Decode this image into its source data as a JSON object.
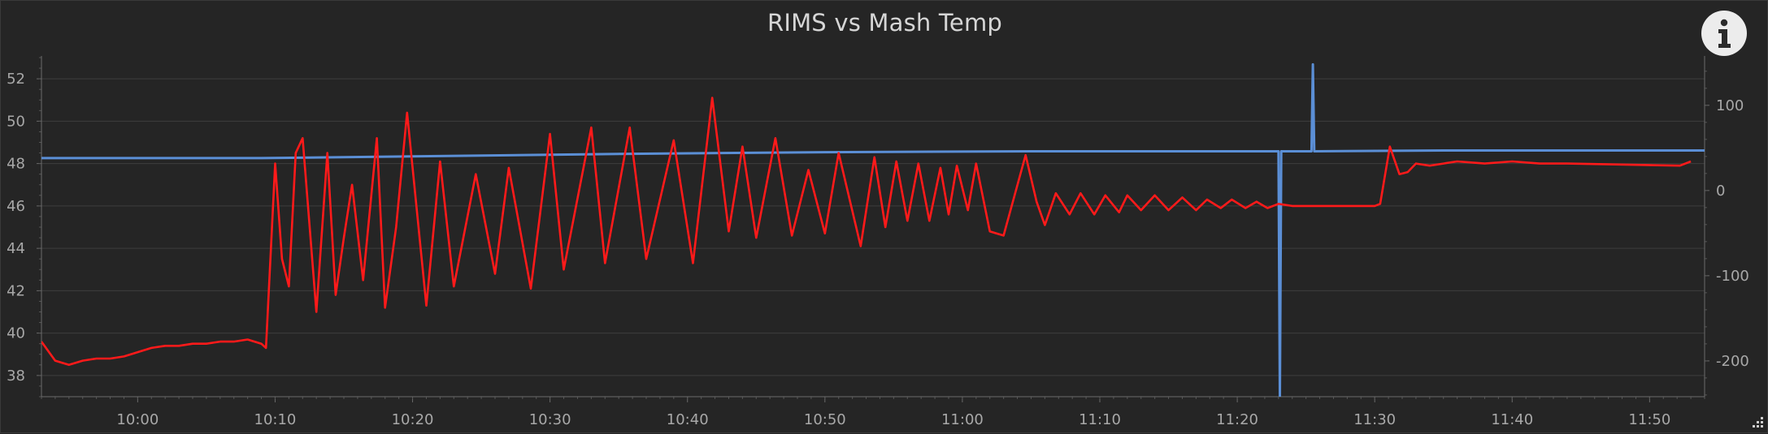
{
  "chart_data": {
    "type": "line",
    "title": "RIMS vs Mash Temp",
    "xlabel": "",
    "ylabel": "",
    "x_range": [
      "09:53",
      "11:54"
    ],
    "ylim_left": [
      37,
      53
    ],
    "ylim_right": [
      -242,
      156
    ],
    "grid": true,
    "legend": "none",
    "x_ticks": [
      "10:00",
      "10:10",
      "10:20",
      "10:30",
      "10:40",
      "10:50",
      "11:00",
      "11:10",
      "11:20",
      "11:30",
      "11:40",
      "11:50"
    ],
    "y_ticks_left": [
      38,
      40,
      42,
      44,
      46,
      48,
      50,
      52
    ],
    "y_ticks_right": [
      -200,
      -100,
      0,
      100
    ],
    "series": [
      {
        "axis": "left",
        "color": "#ff1a1a",
        "points": [
          [
            "09:53",
            39.6
          ],
          [
            "09:54",
            38.7
          ],
          [
            "09:55",
            38.5
          ],
          [
            "09:56",
            38.7
          ],
          [
            "09:57",
            38.8
          ],
          [
            "09:58",
            38.8
          ],
          [
            "09:59",
            38.9
          ],
          [
            "10:00",
            39.1
          ],
          [
            "10:01",
            39.3
          ],
          [
            "10:02",
            39.4
          ],
          [
            "10:03",
            39.4
          ],
          [
            "10:04",
            39.5
          ],
          [
            "10:05",
            39.5
          ],
          [
            "10:06",
            39.6
          ],
          [
            "10:07",
            39.6
          ],
          [
            "10:08",
            39.7
          ],
          [
            "10:09",
            39.5
          ],
          [
            "10:09:20",
            39.3
          ],
          [
            "10:10",
            48.0
          ],
          [
            "10:10:30",
            43.5
          ],
          [
            "10:11",
            42.2
          ],
          [
            "10:11:30",
            48.5
          ],
          [
            "10:12",
            49.2
          ],
          [
            "10:13",
            41.0
          ],
          [
            "10:13:48",
            48.5
          ],
          [
            "10:14:24",
            41.8
          ],
          [
            "10:15",
            44.5
          ],
          [
            "10:15:36",
            47.0
          ],
          [
            "10:16:24",
            42.5
          ],
          [
            "10:17:24",
            49.2
          ],
          [
            "10:18",
            41.2
          ],
          [
            "10:18:48",
            45.0
          ],
          [
            "10:19:36",
            50.4
          ],
          [
            "10:21",
            41.3
          ],
          [
            "10:22",
            48.1
          ],
          [
            "10:23",
            42.2
          ],
          [
            "10:24:36",
            47.5
          ],
          [
            "10:26",
            42.8
          ],
          [
            "10:27",
            47.8
          ],
          [
            "10:28:36",
            42.1
          ],
          [
            "10:30",
            49.4
          ],
          [
            "10:31",
            43.0
          ],
          [
            "10:33",
            49.7
          ],
          [
            "10:34",
            43.3
          ],
          [
            "10:35:48",
            49.7
          ],
          [
            "10:37",
            43.5
          ],
          [
            "10:39",
            49.1
          ],
          [
            "10:40:24",
            43.3
          ],
          [
            "10:41:48",
            51.1
          ],
          [
            "10:43",
            44.8
          ],
          [
            "10:44",
            48.8
          ],
          [
            "10:45",
            44.5
          ],
          [
            "10:46:24",
            49.2
          ],
          [
            "10:47:36",
            44.6
          ],
          [
            "10:48:48",
            47.7
          ],
          [
            "10:50",
            44.7
          ],
          [
            "10:51",
            48.5
          ],
          [
            "10:52:36",
            44.1
          ],
          [
            "10:53:36",
            48.3
          ],
          [
            "10:54:24",
            45.0
          ],
          [
            "10:55:12",
            48.1
          ],
          [
            "10:56",
            45.3
          ],
          [
            "10:56:48",
            48.0
          ],
          [
            "10:57:36",
            45.3
          ],
          [
            "10:58:24",
            47.8
          ],
          [
            "10:59",
            45.6
          ],
          [
            "10:59:36",
            47.9
          ],
          [
            "11:00:24",
            45.8
          ],
          [
            "11:01",
            48.0
          ],
          [
            "11:02",
            44.8
          ],
          [
            "11:03",
            44.6
          ],
          [
            "11:04:36",
            48.4
          ],
          [
            "11:05:24",
            46.2
          ],
          [
            "11:06",
            45.1
          ],
          [
            "11:06:48",
            46.6
          ],
          [
            "11:07:48",
            45.6
          ],
          [
            "11:08:36",
            46.6
          ],
          [
            "11:09:36",
            45.6
          ],
          [
            "11:10:24",
            46.5
          ],
          [
            "11:11:24",
            45.7
          ],
          [
            "11:12",
            46.5
          ],
          [
            "11:13",
            45.8
          ],
          [
            "11:14",
            46.5
          ],
          [
            "11:15",
            45.8
          ],
          [
            "11:16",
            46.4
          ],
          [
            "11:17",
            45.8
          ],
          [
            "11:17:48",
            46.3
          ],
          [
            "11:18:48",
            45.9
          ],
          [
            "11:19:36",
            46.3
          ],
          [
            "11:20:36",
            45.9
          ],
          [
            "11:21:24",
            46.2
          ],
          [
            "11:22:12",
            45.9
          ],
          [
            "11:23",
            46.1
          ],
          [
            "11:24",
            46.0
          ],
          [
            "11:26",
            46.0
          ],
          [
            "11:28",
            46.0
          ],
          [
            "11:30",
            46.0
          ],
          [
            "11:30:24",
            46.1
          ],
          [
            "11:31:06",
            48.8
          ],
          [
            "11:31:48",
            47.5
          ],
          [
            "11:32:24",
            47.6
          ],
          [
            "11:33",
            48.0
          ],
          [
            "11:34",
            47.9
          ],
          [
            "11:35",
            48.0
          ],
          [
            "11:36",
            48.1
          ],
          [
            "11:38",
            48.0
          ],
          [
            "11:40",
            48.1
          ],
          [
            "11:42",
            48.0
          ],
          [
            "11:44",
            48.0
          ],
          [
            "11:52:12",
            47.9
          ],
          [
            "11:53",
            48.1
          ]
        ]
      },
      {
        "axis": "right",
        "color": "#5b8fd6",
        "points": [
          [
            "09:53",
            38
          ],
          [
            "10:00",
            38
          ],
          [
            "10:09",
            38
          ],
          [
            "10:20",
            40
          ],
          [
            "10:35",
            43
          ],
          [
            "10:50",
            45
          ],
          [
            "11:05",
            46
          ],
          [
            "11:23",
            46
          ],
          [
            "11:23:06",
            -242
          ],
          [
            "11:23:12",
            46
          ],
          [
            "11:25:24",
            46
          ],
          [
            "11:25:30",
            148
          ],
          [
            "11:25:36",
            46
          ],
          [
            "11:35",
            47
          ],
          [
            "11:45",
            47
          ],
          [
            "11:54",
            47
          ]
        ]
      }
    ]
  }
}
